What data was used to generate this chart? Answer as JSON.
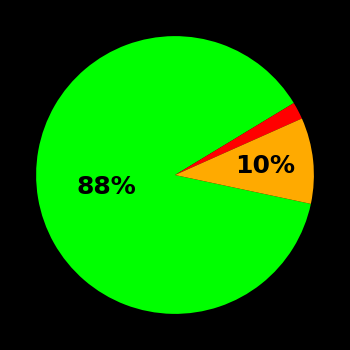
{
  "slices": [
    88,
    2,
    10
  ],
  "colors": [
    "#00ff00",
    "#ff0000",
    "#ffaa00"
  ],
  "labels": [
    "88%",
    "",
    "10%"
  ],
  "background_color": "#000000",
  "startangle": -12,
  "label_fontsize": 18,
  "label_color": "#000000",
  "label_radii": [
    0.5,
    0.0,
    0.65
  ]
}
